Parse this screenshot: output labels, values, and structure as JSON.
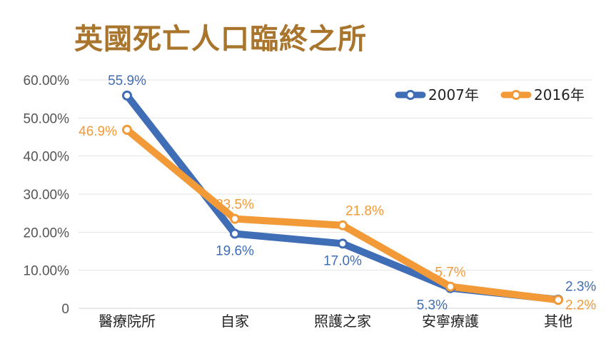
{
  "chart_data": {
    "type": "line",
    "title": "英國死亡人口臨終之所",
    "categories": [
      "醫療院所",
      "自家",
      "照護之家",
      "安寧療護",
      "其他"
    ],
    "ylim": [
      0,
      60
    ],
    "yticks": [
      "0",
      "10.00%",
      "20.00%",
      "30.00%",
      "40.00%",
      "50.00%",
      "60.00%"
    ],
    "grid": true,
    "legend_position": "top-right",
    "series": [
      {
        "name": "2007年",
        "color": "#3f6db6",
        "values": [
          55.9,
          19.6,
          17.0,
          5.3,
          2.3
        ],
        "labels": [
          "55.9%",
          "19.6%",
          "17.0%",
          "5.3%",
          "2.3%"
        ]
      },
      {
        "name": "2016年",
        "color": "#f29a38",
        "values": [
          46.9,
          23.5,
          21.8,
          5.7,
          2.2
        ],
        "labels": [
          "46.9%",
          "23.5%",
          "21.8%",
          "5.7%",
          "2.2%"
        ]
      }
    ]
  }
}
